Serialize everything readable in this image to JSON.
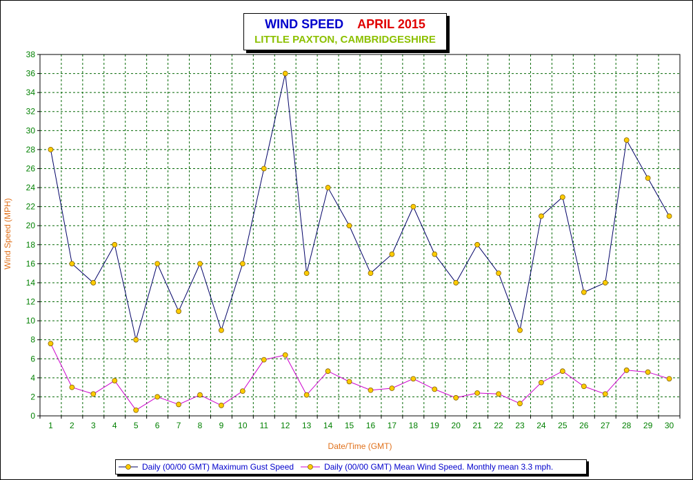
{
  "header": {
    "title_main": "WIND SPEED",
    "title_month": "APRIL 2015",
    "subtitle": "LITTLE PAXTON, CAMBRIDGESHIRE"
  },
  "colors": {
    "gust_line": "#000066",
    "mean_line": "#cc00cc",
    "marker": "#ffcc00",
    "grid": "#006600",
    "tick_text": "#008000",
    "axis_title": "#e0701a"
  },
  "chart_data": {
    "type": "line",
    "title": "WIND SPEED APRIL 2015",
    "subtitle": "LITTLE PAXTON, CAMBRIDGESHIRE",
    "xlabel": "Date/Time (GMT)",
    "ylabel": "Wind Speed (MPH)",
    "ylim": [
      0,
      38
    ],
    "yticks": [
      0,
      2,
      4,
      6,
      8,
      10,
      12,
      14,
      16,
      18,
      20,
      22,
      24,
      26,
      28,
      30,
      32,
      34,
      36,
      38
    ],
    "categories": [
      "1",
      "2",
      "3",
      "4",
      "5",
      "6",
      "7",
      "8",
      "9",
      "10",
      "11",
      "12",
      "13",
      "14",
      "15",
      "16",
      "17",
      "18",
      "19",
      "20",
      "21",
      "22",
      "23",
      "24",
      "25",
      "26",
      "27",
      "28",
      "29",
      "30"
    ],
    "grid": true,
    "legend_position": "bottom",
    "series": [
      {
        "name": "Daily (00/00 GMT) Maximum Gust Speed",
        "color": "#000066",
        "values": [
          28,
          16,
          14,
          18,
          8,
          16,
          11,
          16,
          9,
          16,
          26,
          36,
          15,
          24,
          20,
          15,
          17,
          22,
          17,
          14,
          18,
          15,
          9,
          21,
          23,
          13,
          14,
          29,
          25,
          21
        ]
      },
      {
        "name": "Daily (00/00 GMT) Mean Wind Speed. Monthly mean 3.3 mph.",
        "color": "#cc00cc",
        "values": [
          7.6,
          3.0,
          2.3,
          3.7,
          0.6,
          2.0,
          1.2,
          2.2,
          1.1,
          2.6,
          5.9,
          6.4,
          2.2,
          4.7,
          3.6,
          2.7,
          2.9,
          3.9,
          2.8,
          1.9,
          2.4,
          2.3,
          1.3,
          3.5,
          4.7,
          3.1,
          2.3,
          4.8,
          4.6,
          3.9
        ]
      }
    ]
  }
}
